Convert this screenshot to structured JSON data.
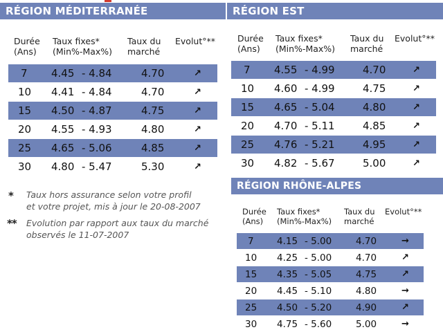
{
  "tables": [
    {
      "title": "RÉGION MÉDITERRANÉE",
      "headers": [
        "Durée\n(Ans)",
        "Taux fixes*\n(Min%-Max%)",
        "Taux du\nmarché",
        "Evolut°**"
      ],
      "rows": [
        {
          "duree": "7",
          "min": "4.45",
          "max": "- 4.84",
          "marche": "4.70",
          "arrow": "↗"
        },
        {
          "duree": "10",
          "min": "4.41",
          "max": "- 4.84",
          "marche": "4.70",
          "arrow": "↗"
        },
        {
          "duree": "15",
          "min": "4.50",
          "max": "- 4.87",
          "marche": "4.75",
          "arrow": "↗"
        },
        {
          "duree": "20",
          "min": "4.55",
          "max": "- 4.93",
          "marche": "4.80",
          "arrow": "↗"
        },
        {
          "duree": "25",
          "min": "4.65",
          "max": "- 5.06",
          "marche": "4.85",
          "arrow": "↗"
        },
        {
          "duree": "30",
          "min": "4.80",
          "max": "- 5.47",
          "marche": "5.30",
          "arrow": "↗"
        }
      ]
    },
    {
      "title": "RÉGION EST",
      "headers": [
        "Durée\n(Ans)",
        "Taux fixes*\n(Min%-Max%)",
        "Taux du\nmarché",
        "Evolut°**"
      ],
      "rows": [
        {
          "duree": "7",
          "min": "4.55",
          "max": "- 4.99",
          "marche": "4.70",
          "arrow": "↗"
        },
        {
          "duree": "10",
          "min": "4.60",
          "max": "- 4.99",
          "marche": "4.75",
          "arrow": "↗"
        },
        {
          "duree": "15",
          "min": "4.65",
          "max": "- 5.04",
          "marche": "4.80",
          "arrow": "↗"
        },
        {
          "duree": "20",
          "min": "4.70",
          "max": "- 5.11",
          "marche": "4.85",
          "arrow": "↗"
        },
        {
          "duree": "25",
          "min": "4.76",
          "max": "- 5.21",
          "marche": "4.95",
          "arrow": "↗"
        },
        {
          "duree": "30",
          "min": "4.82",
          "max": "- 5.67",
          "marche": "5.00",
          "arrow": "↗"
        }
      ]
    },
    {
      "title": "RÉGION RHÔNE-ALPES",
      "headers": [
        "Durée\n(Ans)",
        "Taux fixes*\n(Min%-Max%)",
        "Taux du\nmarché",
        "Evolut°**"
      ],
      "rows": [
        {
          "duree": "7",
          "min": "4.15",
          "max": "- 5.00",
          "marche": "4.70",
          "arrow": "→"
        },
        {
          "duree": "10",
          "min": "4.25",
          "max": "- 5.00",
          "marche": "4.70",
          "arrow": "↗"
        },
        {
          "duree": "15",
          "min": "4.35",
          "max": "- 5.05",
          "marche": "4.75",
          "arrow": "↗"
        },
        {
          "duree": "20",
          "min": "4.45",
          "max": "- 5.10",
          "marche": "4.80",
          "arrow": "→"
        },
        {
          "duree": "25",
          "min": "4.50",
          "max": "- 5.20",
          "marche": "4.90",
          "arrow": "↗"
        },
        {
          "duree": "30",
          "min": "4.75",
          "max": "- 5.60",
          "marche": "5.00",
          "arrow": "→"
        }
      ]
    }
  ],
  "notes": [
    {
      "mark": "*",
      "text": "Taux hors assurance selon votre profil\net votre projet, mis à jour le 20-08-2007"
    },
    {
      "mark": "**",
      "text": "Evolution par rapport aux taux du marché\nobservés le 11-07-2007"
    }
  ],
  "colors": {
    "band": "#6f83b8",
    "stripe": "#6f83b8",
    "accent": "#d23a2f"
  }
}
